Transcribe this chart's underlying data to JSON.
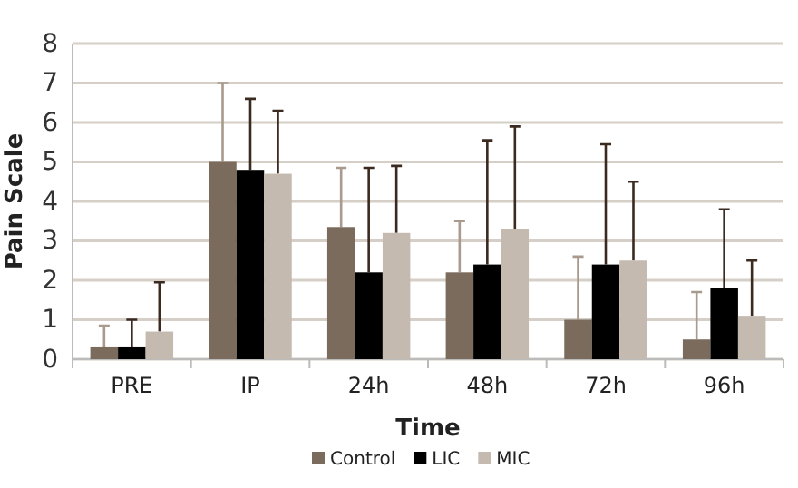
{
  "chart_data": {
    "type": "bar",
    "xlabel": "Time",
    "ylabel": "Pain Scale",
    "categories": [
      "PRE",
      "IP",
      "24h",
      "48h",
      "72h",
      "96h"
    ],
    "series": [
      {
        "name": "Control",
        "color": "#7b6b5d",
        "values": [
          0.3,
          5.0,
          3.35,
          2.2,
          1.0,
          0.5
        ],
        "errors": [
          [
            0.3,
            0.85
          ],
          [
            5.0,
            7.0
          ],
          [
            3.35,
            4.85
          ],
          [
            2.2,
            3.5
          ],
          [
            1.0,
            2.6
          ],
          [
            0.5,
            1.7
          ]
        ]
      },
      {
        "name": "LIC",
        "color": "#000000",
        "values": [
          0.3,
          4.8,
          2.2,
          2.4,
          2.4,
          1.8
        ],
        "errors": [
          [
            0.3,
            1.0
          ],
          [
            4.8,
            6.6
          ],
          [
            2.2,
            4.85
          ],
          [
            2.4,
            5.55
          ],
          [
            2.4,
            5.45
          ],
          [
            1.8,
            3.8
          ]
        ]
      },
      {
        "name": "MIC",
        "color": "#c4bab0",
        "values": [
          0.7,
          4.7,
          3.2,
          3.3,
          2.5,
          1.1
        ],
        "errors": [
          [
            0.7,
            1.95
          ],
          [
            4.7,
            6.3
          ],
          [
            3.2,
            4.9
          ],
          [
            3.3,
            5.9
          ],
          [
            2.5,
            4.5
          ],
          [
            1.1,
            2.5
          ]
        ]
      }
    ],
    "ylim": [
      0,
      8
    ],
    "yticks": [
      0,
      1,
      2,
      3,
      4,
      5,
      6,
      7,
      8
    ],
    "grid": "y",
    "legend": "bottom"
  }
}
